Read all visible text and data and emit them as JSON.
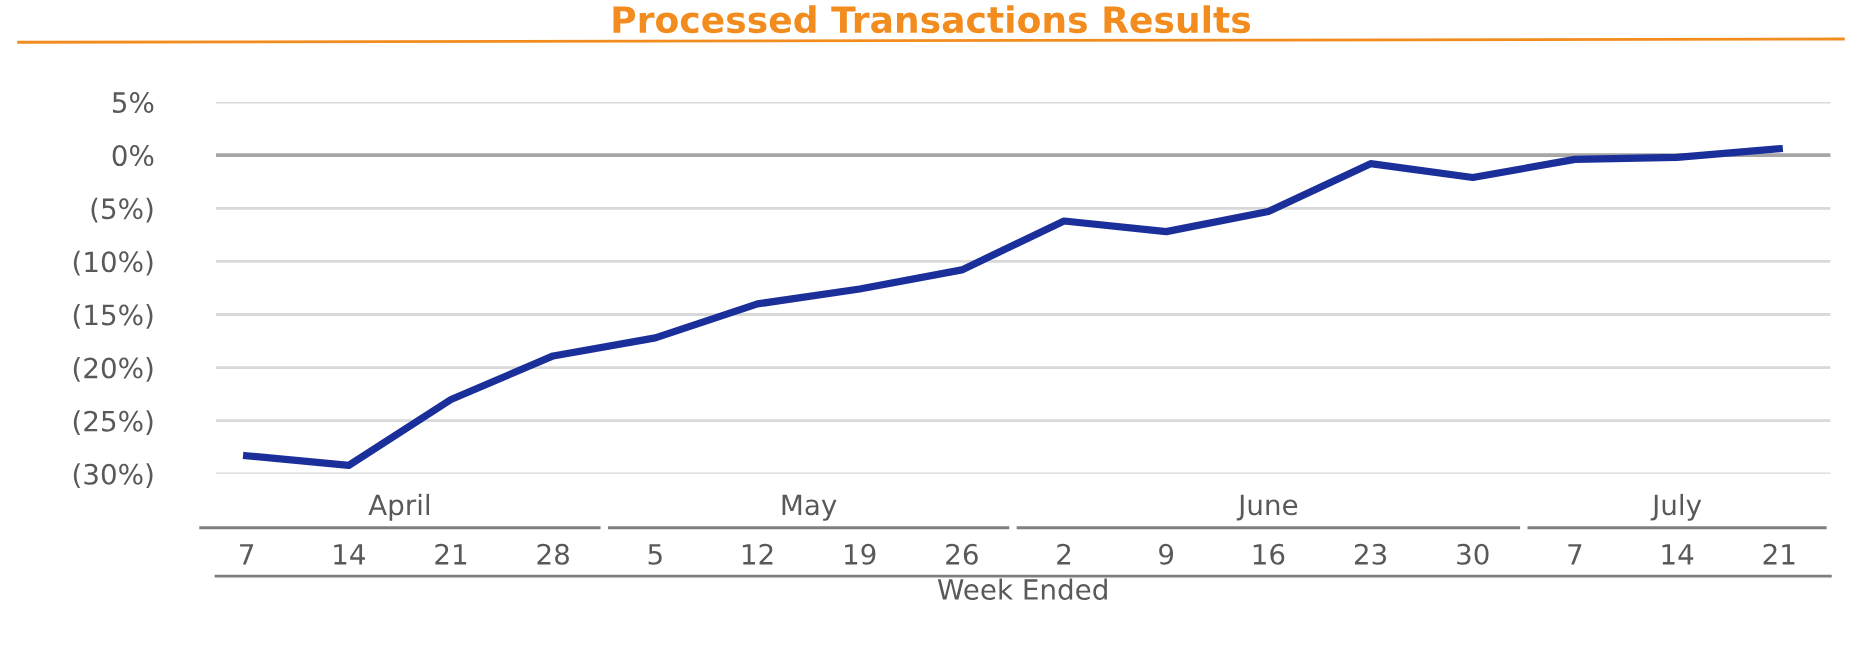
{
  "chart_data": {
    "type": "line",
    "title": "Processed Transactions Results",
    "xlabel": "Week Ended",
    "categories": [
      "7",
      "14",
      "21",
      "28",
      "5",
      "12",
      "19",
      "26",
      "2",
      "9",
      "16",
      "23",
      "30",
      "7",
      "14",
      "21"
    ],
    "series": [
      {
        "color": "#1b2f9a",
        "values": [
          -28.3,
          -29.2,
          -23.0,
          -18.9,
          -17.2,
          -14.0,
          -12.6,
          -10.8,
          -6.2,
          -7.2,
          -5.3,
          -0.8,
          -2.1,
          -0.4,
          -0.2,
          0.6
        ]
      }
    ],
    "ylim": [
      -30,
      5
    ],
    "yticks": [
      {
        "value": 5,
        "label": "5%"
      },
      {
        "value": 0,
        "label": "0%"
      },
      {
        "value": -5,
        "label": "(5%)"
      },
      {
        "value": -10,
        "label": "(10%)"
      },
      {
        "value": -15,
        "label": "(15%)"
      },
      {
        "value": -20,
        "label": "(20%)"
      },
      {
        "value": -25,
        "label": "(25%)"
      },
      {
        "value": -30,
        "label": "(30%)"
      }
    ],
    "grid": "y",
    "marker": "none",
    "line_style": "solid",
    "ref_lines": [
      {
        "axis": "y",
        "value": 0,
        "color": "#a6a6a6"
      }
    ],
    "annotations": [
      "April",
      "May",
      "June",
      "July"
    ]
  }
}
